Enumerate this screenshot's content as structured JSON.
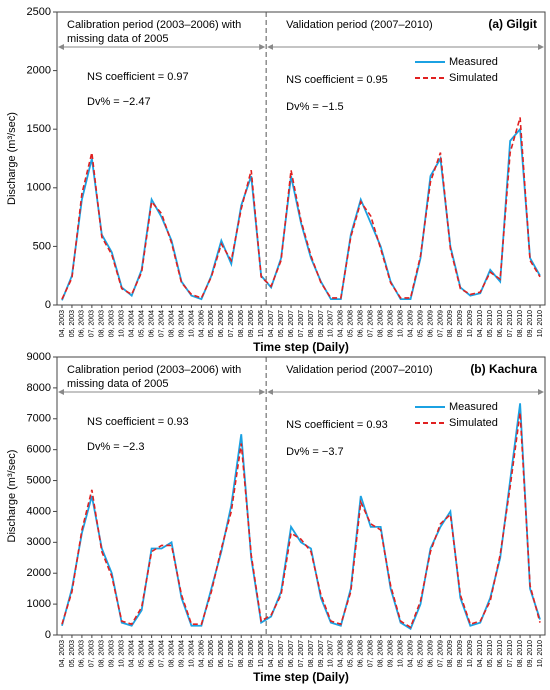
{
  "chart_data": [
    {
      "type": "line",
      "title": "(a) Gilgit",
      "y_label": "Discharge (m³/sec)",
      "x_label": "Time step (Daily)",
      "calibration_label": [
        "Calibration period (2003–2006) with",
        "missing data of 2005"
      ],
      "validation_label": "Validation period (2007–2010)",
      "calibration_stats": [
        "NS coefficient = 0.97",
        "Dv% = −2.47"
      ],
      "validation_stats": [
        "NS coefficient = 0.95",
        "Dv% = −1.5"
      ],
      "categories": [
        "04, 2003",
        "05, 2003",
        "06, 2003",
        "07, 2003",
        "08, 2003",
        "09, 2003",
        "10, 2003",
        "04, 2004",
        "05, 2004",
        "06, 2004",
        "07, 2004",
        "08, 2004",
        "09, 2004",
        "10, 2004",
        "04, 2006",
        "05, 2006",
        "06, 2006",
        "07, 2006",
        "08, 2006",
        "09, 2006",
        "10, 2006",
        "04, 2007",
        "05, 2007",
        "06, 2007",
        "07, 2007",
        "08, 2007",
        "09, 2007",
        "10, 2007",
        "04, 2008",
        "05, 2008",
        "06, 2008",
        "07, 2008",
        "08, 2008",
        "09, 2008",
        "10, 2008",
        "04, 2009",
        "05, 2009",
        "06, 2009",
        "07, 2009",
        "08, 2009",
        "09, 2009",
        "10, 2009",
        "04, 2010",
        "05, 2010",
        "06, 2010",
        "07, 2010",
        "08, 2010",
        "09, 2010",
        "10, 2010"
      ],
      "series": [
        {
          "name": "Measured",
          "color": "#1ba1e2",
          "dash": false,
          "values": [
            40,
            250,
            900,
            1250,
            600,
            450,
            150,
            80,
            300,
            900,
            750,
            550,
            200,
            80,
            50,
            250,
            550,
            350,
            850,
            1100,
            250,
            150,
            400,
            1100,
            700,
            400,
            200,
            50,
            50,
            600,
            900,
            700,
            500,
            200,
            50,
            50,
            400,
            1100,
            1250,
            500,
            150,
            80,
            100,
            300,
            200,
            1400,
            1500,
            400,
            250
          ]
        },
        {
          "name": "Simulated",
          "color": "#e02020",
          "dash": true,
          "values": [
            50,
            230,
            950,
            1300,
            580,
            430,
            140,
            90,
            280,
            880,
            780,
            530,
            190,
            90,
            60,
            240,
            520,
            380,
            820,
            1150,
            240,
            160,
            380,
            1150,
            720,
            420,
            190,
            60,
            60,
            580,
            880,
            760,
            480,
            190,
            60,
            60,
            420,
            1050,
            1300,
            480,
            140,
            90,
            110,
            280,
            220,
            1300,
            1600,
            380,
            240
          ]
        }
      ],
      "ylim": [
        0,
        2500
      ],
      "yticks": [
        0,
        500,
        1000,
        1500,
        2000,
        2500
      ],
      "legend": "upper right"
    },
    {
      "type": "line",
      "title": "(b) Kachura",
      "y_label": "Discharge (m³/sec)",
      "x_label": "Time step (Daily)",
      "calibration_label": [
        "Calibration period (2003–2006) with",
        "missing data of 2005"
      ],
      "validation_label": "Validation period (2007–2010)",
      "calibration_stats": [
        "NS coefficient = 0.93",
        "Dv% = −2.3"
      ],
      "validation_stats": [
        "NS coefficient = 0.93",
        "Dv% = −3.7"
      ],
      "categories": [
        "04, 2003",
        "05, 2003",
        "06, 2003",
        "07, 2003",
        "08, 2003",
        "09, 2003",
        "10, 2003",
        "04, 2004",
        "05, 2004",
        "06, 2004",
        "07, 2004",
        "08, 2004",
        "09, 2004",
        "10, 2004",
        "04, 2006",
        "05, 2006",
        "06, 2006",
        "07, 2006",
        "08, 2006",
        "09, 2006",
        "10, 2006",
        "04, 2007",
        "05, 2007",
        "06, 2007",
        "07, 2007",
        "08, 2007",
        "09, 2007",
        "10, 2007",
        "04, 2008",
        "05, 2008",
        "06, 2008",
        "07, 2008",
        "08, 2008",
        "09, 2008",
        "10, 2008",
        "04, 2009",
        "05, 2009",
        "06, 2009",
        "07, 2009",
        "08, 2009",
        "09, 2009",
        "10, 2009",
        "04, 2010",
        "05, 2010",
        "06, 2010",
        "07, 2010",
        "08, 2010",
        "09, 2010",
        "10, 2010"
      ],
      "series": [
        {
          "name": "Measured",
          "color": "#1ba1e2",
          "dash": false,
          "values": [
            300,
            1500,
            3300,
            4500,
            2800,
            2000,
            400,
            300,
            800,
            2800,
            2800,
            3000,
            1200,
            300,
            300,
            1500,
            2700,
            4200,
            6500,
            2500,
            400,
            600,
            1400,
            3500,
            3000,
            2800,
            1200,
            400,
            300,
            1500,
            4500,
            3500,
            3500,
            1500,
            400,
            200,
            1000,
            2800,
            3500,
            4000,
            1200,
            300,
            400,
            1200,
            2500,
            5000,
            7500,
            1500,
            500
          ]
        },
        {
          "name": "Simulated",
          "color": "#e02020",
          "dash": true,
          "values": [
            350,
            1400,
            3400,
            4700,
            2700,
            1900,
            450,
            350,
            900,
            2700,
            2900,
            2900,
            1300,
            350,
            350,
            1400,
            2800,
            4000,
            6200,
            2600,
            450,
            650,
            1300,
            3300,
            3100,
            2700,
            1300,
            450,
            350,
            1400,
            4300,
            3600,
            3400,
            1600,
            450,
            250,
            1100,
            2700,
            3600,
            3900,
            1300,
            350,
            450,
            1100,
            2600,
            4800,
            7200,
            1600,
            400
          ]
        }
      ],
      "ylim": [
        0,
        9000
      ],
      "yticks": [
        0,
        1000,
        2000,
        3000,
        4000,
        5000,
        6000,
        7000,
        8000,
        9000
      ],
      "legend": "upper right"
    }
  ]
}
